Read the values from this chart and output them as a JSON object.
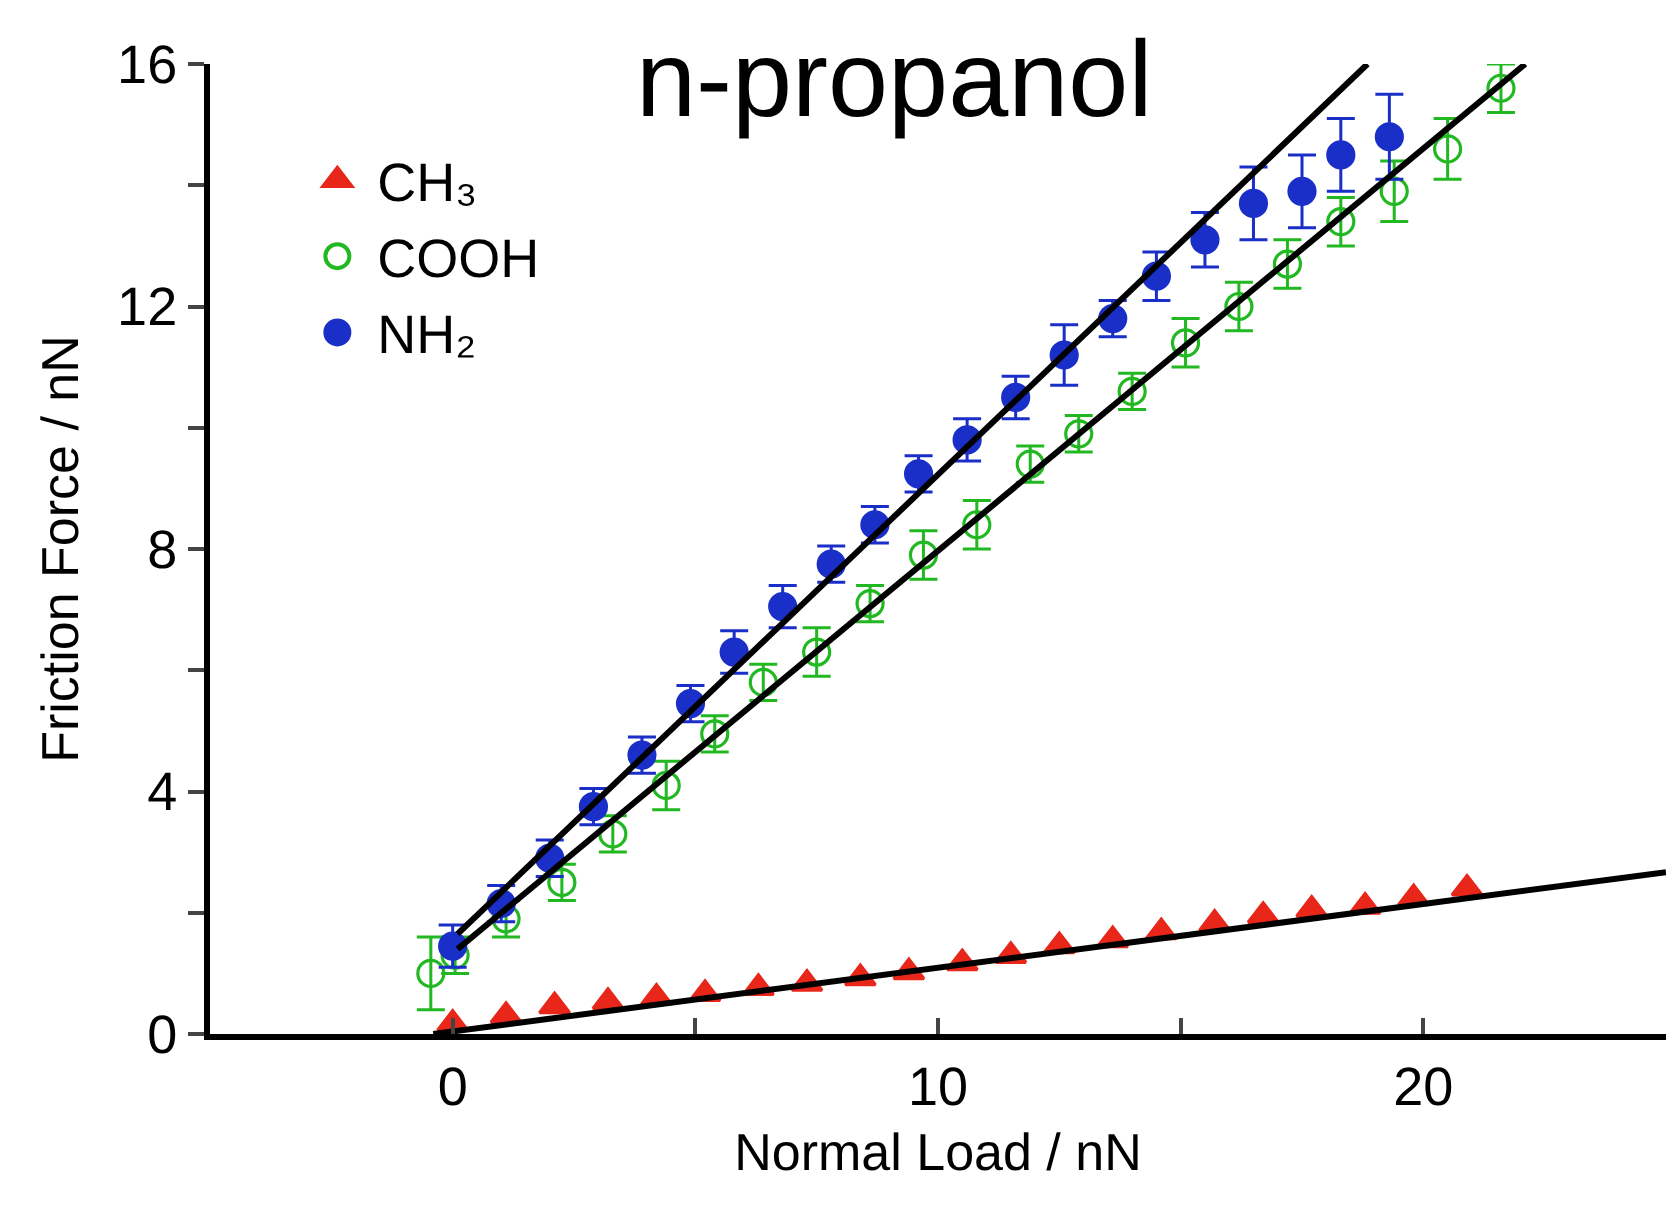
{
  "chart_data": {
    "type": "scatter",
    "title": "n-propanol",
    "xlabel": "Normal Load / nN",
    "ylabel": "Friction Force / nN",
    "xlim": [
      -5,
      25
    ],
    "xticks": [
      {
        "value": -5,
        "label": null
      },
      0,
      {
        "value": 5,
        "label": null
      },
      10,
      {
        "value": 15,
        "label": null
      },
      20,
      {
        "value": 25,
        "label": null
      }
    ],
    "ylim": [
      0,
      16
    ],
    "yticks": [
      0,
      {
        "value": 2,
        "label": null
      },
      4,
      {
        "value": 6,
        "label": null
      },
      8,
      {
        "value": 10,
        "label": null
      },
      12,
      {
        "value": 14,
        "label": null
      },
      16
    ],
    "grid": false,
    "legend": "top left",
    "series": [
      {
        "name": "CH₃",
        "color": "#e8261a",
        "marker": "triangle",
        "x": [
          0,
          1.1,
          2.1,
          3.2,
          4.2,
          5.2,
          6.3,
          7.3,
          8.4,
          9.4,
          10.5,
          11.5,
          12.5,
          13.6,
          14.6,
          15.7,
          16.7,
          17.7,
          18.8,
          19.8,
          20.9
        ],
        "values": [
          0.17,
          0.3,
          0.46,
          0.53,
          0.6,
          0.66,
          0.76,
          0.83,
          0.92,
          1.02,
          1.17,
          1.29,
          1.45,
          1.55,
          1.68,
          1.82,
          1.95,
          2.05,
          2.1,
          2.24,
          2.4
        ]
      },
      {
        "name": "COOH",
        "color": "#22b822",
        "marker": "circle-open",
        "x": [
          -0.45,
          0.05,
          1.1,
          2.25,
          3.3,
          4.4,
          5.4,
          6.4,
          7.5,
          8.6,
          9.7,
          10.8,
          11.9,
          12.9,
          14.0,
          15.1,
          16.2,
          17.2,
          18.3,
          19.4,
          20.5,
          21.6
        ],
        "values": [
          1.0,
          1.3,
          1.9,
          2.5,
          3.3,
          4.1,
          4.95,
          5.8,
          6.3,
          7.1,
          7.9,
          8.4,
          9.4,
          9.9,
          10.6,
          11.4,
          12.0,
          12.7,
          13.4,
          13.9,
          14.6,
          15.6
        ],
        "errors": [
          0.6,
          0.3,
          0.3,
          0.3,
          0.3,
          0.4,
          0.3,
          0.3,
          0.4,
          0.3,
          0.4,
          0.4,
          0.3,
          0.3,
          0.3,
          0.4,
          0.4,
          0.4,
          0.4,
          0.5,
          0.5,
          0.4
        ]
      },
      {
        "name": "NH₂",
        "color": "#1a2fc8",
        "marker": "circle",
        "x": [
          0,
          1.0,
          2.0,
          2.9,
          3.9,
          4.9,
          5.8,
          6.8,
          7.8,
          8.7,
          9.6,
          10.6,
          11.6,
          12.6,
          13.6,
          14.5,
          15.5,
          16.5,
          17.5,
          18.3,
          19.3
        ],
        "values": [
          1.45,
          2.15,
          2.9,
          3.75,
          4.6,
          5.45,
          6.3,
          7.05,
          7.75,
          8.4,
          9.24,
          9.8,
          10.5,
          11.2,
          11.8,
          12.5,
          13.1,
          13.7,
          13.9,
          14.5,
          14.8
        ],
        "errors": [
          0.35,
          0.3,
          0.3,
          0.3,
          0.3,
          0.3,
          0.35,
          0.35,
          0.3,
          0.3,
          0.3,
          0.35,
          0.35,
          0.5,
          0.3,
          0.4,
          0.45,
          0.6,
          0.6,
          0.6,
          0.7
        ]
      },
      {
        "type": "line",
        "color": "#000000",
        "x": [
          -0.4,
          25
        ],
        "values": [
          0,
          2.67
        ]
      },
      {
        "type": "line",
        "color": "#000000",
        "x": [
          0.1,
          22.1
        ],
        "values": [
          1.4,
          16
        ]
      },
      {
        "type": "line",
        "color": "#000000",
        "x": [
          0.1,
          18.85
        ],
        "values": [
          1.65,
          16
        ]
      }
    ]
  }
}
